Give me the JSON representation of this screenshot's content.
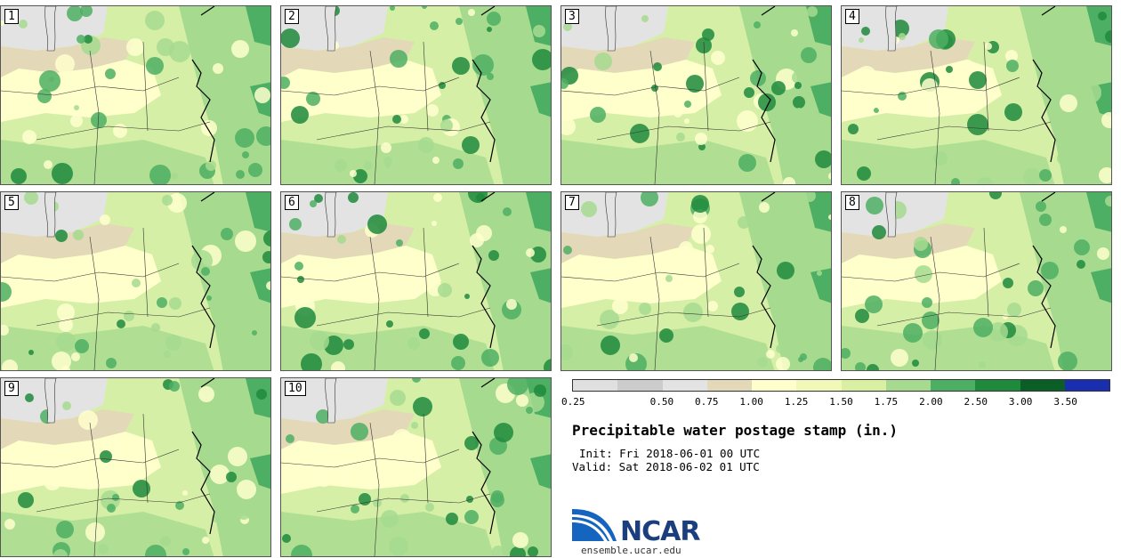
{
  "panels": [
    {
      "label": "1"
    },
    {
      "label": "2"
    },
    {
      "label": "3"
    },
    {
      "label": "4"
    },
    {
      "label": "5"
    },
    {
      "label": "6"
    },
    {
      "label": "7"
    },
    {
      "label": "8"
    },
    {
      "label": "9"
    },
    {
      "label": "10"
    }
  ],
  "legend": {
    "colors": [
      "#e0e0e0",
      "#cccccc",
      "#e3e3e3",
      "#e3d8b8",
      "#ffffcc",
      "#f0f9b8",
      "#d9f0a3",
      "#a6db8f",
      "#4daf63",
      "#1f8a3c",
      "#0b5e25",
      "#1a2fb0"
    ],
    "ticks": [
      "0.25",
      "0.50",
      "0.75",
      "1.00",
      "1.25",
      "1.50",
      "1.75",
      "2.00",
      "2.50",
      "3.00",
      "3.50"
    ]
  },
  "title": "Precipitable water postage stamp (in.)",
  "init_line": "Init: Fri 2018-06-01 00 UTC",
  "valid_line": "Valid: Sat 2018-06-02 01 UTC",
  "logo": {
    "text": "NCAR",
    "url": "ensemble.ucar.edu"
  }
}
